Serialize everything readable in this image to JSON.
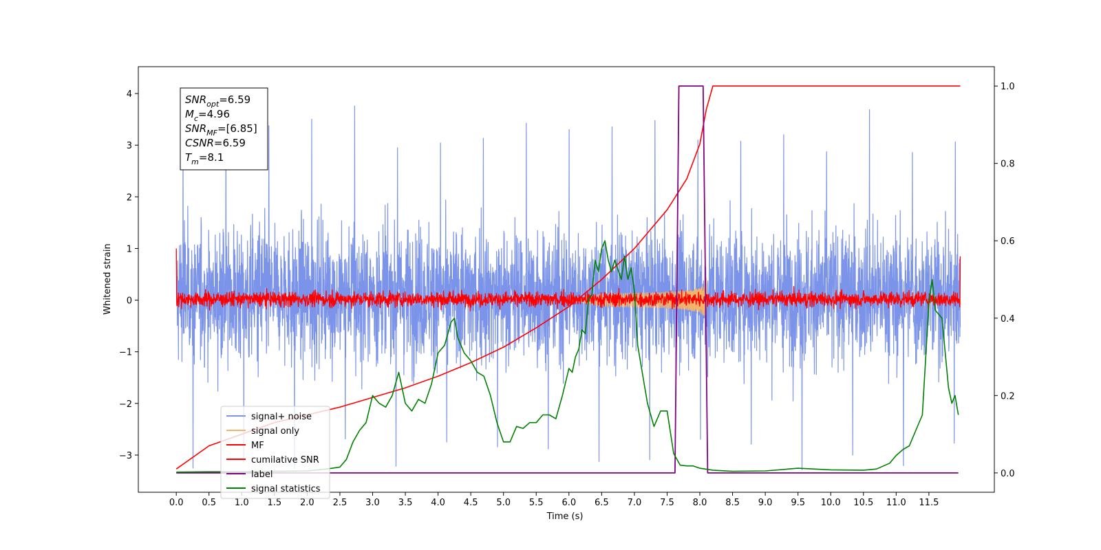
{
  "chart_data": {
    "type": "line",
    "xlabel": "Time (s)",
    "ylabel": "Whitened strain",
    "xlim": [
      -0.58,
      12.5
    ],
    "ylim": [
      -3.72,
      4.52
    ],
    "y2lim": [
      -0.05,
      1.05
    ],
    "x_ticks": [
      "0.0",
      "0.5",
      "1.0",
      "1.5",
      "2.0",
      "2.5",
      "3.0",
      "3.5",
      "4.0",
      "4.5",
      "5.0",
      "5.5",
      "6.0",
      "6.5",
      "7.0",
      "7.5",
      "8.0",
      "8.5",
      "9.0",
      "9.5",
      "10.0",
      "10.5",
      "11.0",
      "11.5"
    ],
    "y_ticks": [
      "−3",
      "−2",
      "−1",
      "0",
      "1",
      "2",
      "3",
      "4"
    ],
    "y2_ticks": [
      "0.0",
      "0.2",
      "0.4",
      "0.6",
      "0.8",
      "1.0"
    ],
    "annotation": {
      "lines": [
        {
          "var": "SNR",
          "sub": "opt",
          "value": "=6.59"
        },
        {
          "var": "M",
          "sub": "c",
          "value": "=4.96"
        },
        {
          "var": "SNR",
          "sub": "MF",
          "value": "=[6.85]"
        },
        {
          "var": "CSNR",
          "sub": "",
          "value": "=6.59"
        },
        {
          "var": "T",
          "sub": "m",
          "value": "=8.1"
        }
      ]
    },
    "legend": {
      "placement": "lower-left",
      "entries": [
        {
          "label": "signal+ noise",
          "color": "#7b93e8"
        },
        {
          "label": "signal only",
          "color": "#f4b36a"
        },
        {
          "label": "MF",
          "color": "#ff0000"
        },
        {
          "label": "cumilative SNR",
          "color": "#ff0000"
        },
        {
          "label": "label",
          "color": "#800080"
        },
        {
          "label": "signal statistics",
          "color": "#008000"
        }
      ]
    },
    "series": [
      {
        "name": "signal+ noise",
        "axis": "left",
        "kind": "noise",
        "x_range": [
          0.0,
          11.98
        ],
        "typical_range": [
          -2.0,
          2.2
        ],
        "extremes": [
          -3.3,
          3.8
        ]
      },
      {
        "name": "signal only",
        "axis": "left",
        "kind": "chirp",
        "x_range": [
          6.0,
          8.1
        ],
        "peak_amplitude": 0.3,
        "peak_time": 8.05
      },
      {
        "name": "MF",
        "axis": "left",
        "kind": "noise",
        "x_range": [
          0.0,
          11.98
        ],
        "typical_range": [
          -0.2,
          0.3
        ],
        "start_value": 1.0,
        "end_value": 0.85
      },
      {
        "name": "cumilative SNR",
        "axis": "right",
        "x": [
          0.0,
          0.5,
          1.0,
          1.5,
          2.0,
          2.5,
          3.0,
          3.5,
          4.0,
          4.5,
          5.0,
          5.5,
          6.0,
          6.5,
          7.0,
          7.5,
          7.8,
          8.0,
          8.1,
          8.2,
          9.0,
          10.0,
          11.0,
          11.98
        ],
        "values": [
          0.01,
          0.07,
          0.1,
          0.13,
          0.15,
          0.17,
          0.195,
          0.22,
          0.25,
          0.285,
          0.325,
          0.375,
          0.43,
          0.5,
          0.58,
          0.68,
          0.76,
          0.85,
          0.94,
          1.0,
          1.0,
          1.0,
          1.0,
          1.0
        ]
      },
      {
        "name": "label",
        "axis": "right",
        "x": [
          0.0,
          7.62,
          7.68,
          8.05,
          8.12,
          11.95
        ],
        "values": [
          0.0,
          0.0,
          1.0,
          1.0,
          0.0,
          0.0
        ]
      },
      {
        "name": "signal statistics",
        "axis": "right",
        "x": [
          0.0,
          0.5,
          1.0,
          1.5,
          2.0,
          2.3,
          2.5,
          2.6,
          2.7,
          2.8,
          2.9,
          3.0,
          3.1,
          3.2,
          3.3,
          3.4,
          3.5,
          3.6,
          3.7,
          3.8,
          3.9,
          4.0,
          4.1,
          4.2,
          4.25,
          4.3,
          4.4,
          4.5,
          4.6,
          4.7,
          4.8,
          4.9,
          5.0,
          5.1,
          5.2,
          5.3,
          5.4,
          5.5,
          5.6,
          5.7,
          5.8,
          5.9,
          6.0,
          6.05,
          6.1,
          6.15,
          6.2,
          6.25,
          6.3,
          6.35,
          6.4,
          6.45,
          6.5,
          6.55,
          6.6,
          6.65,
          6.7,
          6.8,
          6.85,
          6.9,
          6.95,
          7.0,
          7.05,
          7.1,
          7.2,
          7.3,
          7.4,
          7.5,
          7.6,
          7.7,
          7.8,
          7.9,
          8.0,
          8.2,
          8.5,
          9.0,
          9.5,
          10.0,
          10.5,
          10.7,
          10.9,
          11.0,
          11.1,
          11.2,
          11.3,
          11.4,
          11.5,
          11.55,
          11.6,
          11.7,
          11.8,
          11.85,
          11.9,
          11.95
        ],
        "values": [
          0.002,
          0.003,
          0.003,
          0.004,
          0.005,
          0.01,
          0.015,
          0.035,
          0.08,
          0.11,
          0.13,
          0.2,
          0.18,
          0.17,
          0.2,
          0.26,
          0.18,
          0.16,
          0.19,
          0.18,
          0.23,
          0.31,
          0.33,
          0.39,
          0.4,
          0.35,
          0.31,
          0.29,
          0.26,
          0.25,
          0.2,
          0.13,
          0.08,
          0.08,
          0.12,
          0.115,
          0.13,
          0.13,
          0.15,
          0.15,
          0.14,
          0.2,
          0.27,
          0.26,
          0.3,
          0.32,
          0.37,
          0.36,
          0.45,
          0.46,
          0.55,
          0.52,
          0.58,
          0.6,
          0.55,
          0.52,
          0.55,
          0.5,
          0.56,
          0.5,
          0.53,
          0.47,
          0.33,
          0.28,
          0.18,
          0.12,
          0.16,
          0.16,
          0.05,
          0.02,
          0.018,
          0.018,
          0.012,
          0.007,
          0.004,
          0.005,
          0.012,
          0.008,
          0.007,
          0.01,
          0.025,
          0.045,
          0.06,
          0.07,
          0.11,
          0.15,
          0.44,
          0.5,
          0.42,
          0.4,
          0.22,
          0.18,
          0.2,
          0.15
        ]
      }
    ]
  }
}
